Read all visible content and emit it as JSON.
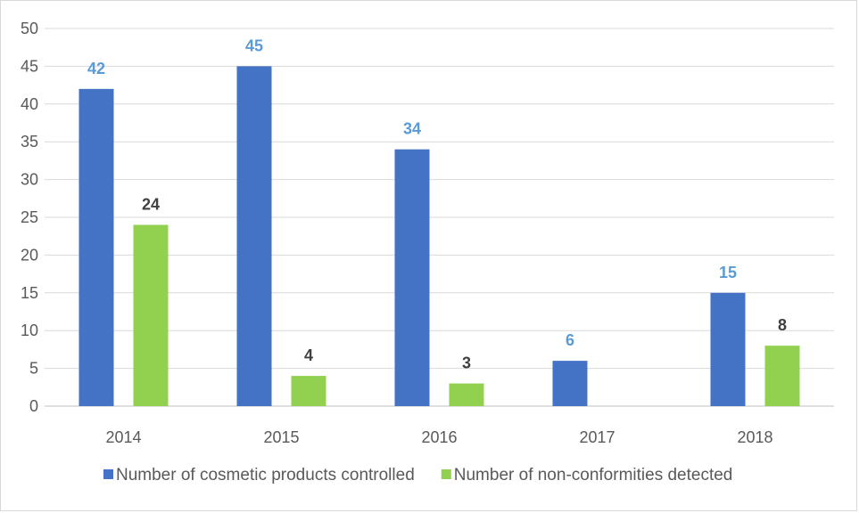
{
  "chart_data": {
    "type": "bar",
    "title": "",
    "categories": [
      "2014",
      "2015",
      "2016",
      "2017",
      "2018"
    ],
    "series": [
      {
        "name": "Number of cosmetic products controlled",
        "values": [
          42,
          45,
          34,
          6,
          15
        ],
        "color": "#4472c4",
        "label_color": "#5b9bd5"
      },
      {
        "name": "Number of non-conformities detected",
        "values": [
          24,
          4,
          3,
          null,
          8
        ],
        "color": "#92d050",
        "label_color": "#404040"
      }
    ],
    "y_ticks": [
      "0",
      "5",
      "10",
      "15",
      "20",
      "25",
      "30",
      "35",
      "40",
      "45",
      "50"
    ],
    "ylim": [
      0,
      50
    ],
    "grid": true,
    "legend_position": "bottom",
    "xlabel": "",
    "ylabel": ""
  }
}
